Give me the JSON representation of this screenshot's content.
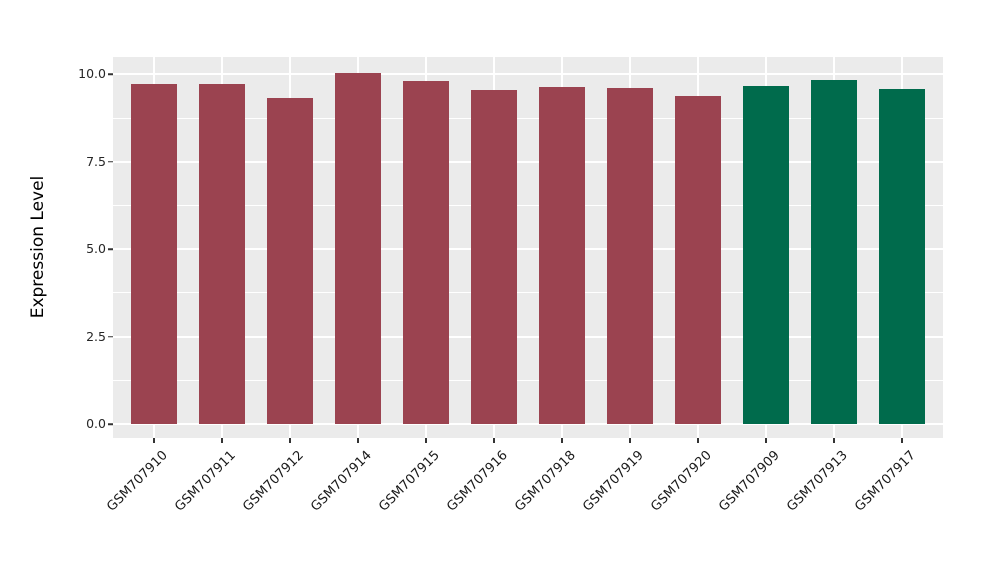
{
  "figure": {
    "background_color": "#FFFFFF",
    "panel_background_color": "#EBEBEB",
    "gridline_color": "#FFFFFF",
    "tick_mark_color": "#333333",
    "axis_text_color": "#262626",
    "axis_title_color": "#000000"
  },
  "chart_data": {
    "type": "bar",
    "title": "",
    "xlabel": "",
    "ylabel": "Expression Level",
    "grid": "on",
    "legend_position": "none",
    "ylim": [
      -0.4,
      10.5
    ],
    "y_major_ticks": [
      0.0,
      2.5,
      5.0,
      7.5,
      10.0
    ],
    "y_major_tick_labels": [
      "0.0",
      "2.5",
      "5.0",
      "7.5",
      "10.0"
    ],
    "y_minor_ticks": [
      1.25,
      3.75,
      6.25,
      8.75
    ],
    "categories": [
      "GSM707910",
      "GSM707911",
      "GSM707912",
      "GSM707914",
      "GSM707915",
      "GSM707916",
      "GSM707918",
      "GSM707919",
      "GSM707920",
      "GSM707909",
      "GSM707913",
      "GSM707917"
    ],
    "values": [
      9.74,
      9.72,
      9.34,
      10.03,
      9.8,
      9.56,
      9.65,
      9.61,
      9.38,
      9.68,
      9.85,
      9.58
    ],
    "bar_colors": [
      "#9B4350",
      "#9B4350",
      "#9B4350",
      "#9B4350",
      "#9B4350",
      "#9B4350",
      "#9B4350",
      "#9B4350",
      "#9B4350",
      "#006B4C",
      "#006B4C",
      "#006B4C"
    ],
    "color_legend": {
      "maroon": "#9B4350",
      "green": "#006B4C"
    }
  }
}
